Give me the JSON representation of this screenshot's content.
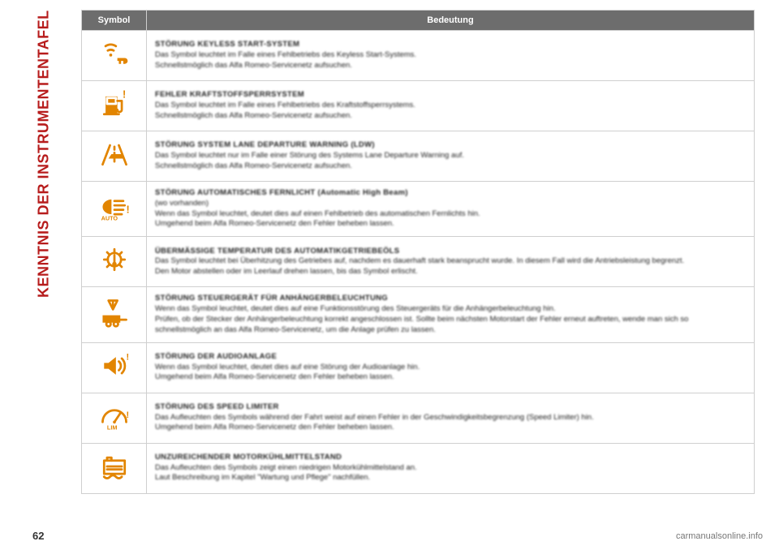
{
  "sidebar": {
    "title": "KENNTNIS DER INSTRUMENTENTAFEL"
  },
  "colors": {
    "accent": "#e28500",
    "header_bg": "#6d6d6d",
    "header_text": "#ffffff",
    "border": "#cfcfcf",
    "text": "#222222",
    "sidebar_title": "#b71c1c"
  },
  "table": {
    "headers": {
      "symbol": "Symbol",
      "meaning": "Bedeutung"
    },
    "rows": [
      {
        "icon": "keyless",
        "title": "STÖRUNG KEYLESS START-SYSTEM",
        "body": "Das Symbol leuchtet im Falle eines Fehlbetriebs des Keyless Start-Systems.\nSchnellstmöglich das Alfa Romeo-Servicenetz aufsuchen."
      },
      {
        "icon": "fuel-lock",
        "title": "FEHLER KRAFTSTOFFSPERRSYSTEM",
        "body": "Das Symbol leuchtet im Falle eines Fehlbetriebs des Kraftstoffsperrsystems.\nSchnellstmöglich das Alfa Romeo-Servicenetz aufsuchen."
      },
      {
        "icon": "lane-depart",
        "title": "STÖRUNG SYSTEM LANE DEPARTURE WARNING (LDW)",
        "body": "Das Symbol leuchtet nur im Falle einer Störung des Systems Lane Departure Warning auf.\nSchnellstmöglich das Alfa Romeo-Servicenetz aufsuchen."
      },
      {
        "icon": "high-beam-auto",
        "title": "STÖRUNG AUTOMATISCHES FERNLICHT (Automatic High Beam)",
        "body": "(wo vorhanden)\nWenn das Symbol leuchtet, deutet dies auf einen Fehlbetrieb des automatischen Fernlichts hin.\nUmgehend beim Alfa Romeo-Servicenetz den Fehler beheben lassen."
      },
      {
        "icon": "oil-temp",
        "title": "ÜBERMÄSSIGE TEMPERATUR DES AUTOMATIKGETRIEBEÖLS",
        "body": "Das Symbol leuchtet bei Überhitzung des Getriebes auf, nachdem es dauerhaft stark beansprucht wurde. In diesem Fall wird die Antriebsleistung begrenzt.\nDen Motor abstellen oder im Leerlauf drehen lassen, bis das Symbol erlischt."
      },
      {
        "icon": "trailer-light",
        "title": "STÖRUNG STEUERGERÄT FÜR ANHÄNGERBELEUCHTUNG",
        "body": "Wenn das Symbol leuchtet, deutet dies auf eine Funktionsstörung des Steuergeräts für die Anhängerbeleuchtung hin.\nPrüfen, ob der Stecker der Anhängerbeleuchtung korrekt angeschlossen ist. Sollte beim nächsten Motorstart der Fehler erneut auftreten, wende man sich so schnellstmöglich an das Alfa Romeo-Servicenetz, um die Anlage prüfen zu lassen."
      },
      {
        "icon": "audio",
        "title": "STÖRUNG DER AUDIOANLAGE",
        "body": "Wenn das Symbol leuchtet, deutet dies auf eine Störung der Audioanlage hin.\nUmgehend beim Alfa Romeo-Servicenetz den Fehler beheben lassen."
      },
      {
        "icon": "speed-limiter",
        "title": "STÖRUNG DES SPEED LIMITER",
        "body": "Das Aufleuchten des Symbols während der Fahrt weist auf einen Fehler in der Geschwindigkeitsbegrenzung (Speed Limiter) hin.\nUmgehend beim Alfa Romeo-Servicenetz den Fehler beheben lassen."
      },
      {
        "icon": "coolant-low",
        "title": "UNZUREICHENDER MOTORKÜHLMITTELSTAND",
        "body": "Das Aufleuchten des Symbols zeigt einen niedrigen Motorkühlmittelstand an.\nLaut Beschreibung im Kapitel \"Wartung und Pflege\" nachfüllen."
      }
    ]
  },
  "footer": {
    "page_number": "62",
    "source": "carmanualsonline.info"
  }
}
